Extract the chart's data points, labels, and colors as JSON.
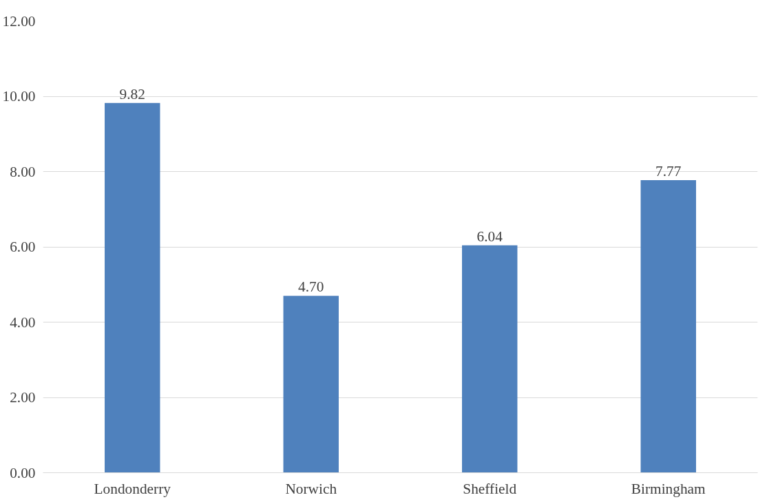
{
  "chart_data": {
    "type": "bar",
    "categories": [
      "Londonderry",
      "Norwich",
      "Sheffield",
      "Birmingham"
    ],
    "values": [
      9.82,
      4.7,
      6.04,
      7.77
    ],
    "value_labels": [
      "9.82",
      "4.70",
      "6.04",
      "7.77"
    ],
    "color": "#4f81bd",
    "ylim": [
      0,
      12
    ],
    "yticks": [
      {
        "value": 0,
        "label": "0.00"
      },
      {
        "value": 2,
        "label": "2.00"
      },
      {
        "value": 4,
        "label": "4.00"
      },
      {
        "value": 6,
        "label": "6.00"
      },
      {
        "value": 8,
        "label": "8.00"
      },
      {
        "value": 10,
        "label": "10.00"
      },
      {
        "value": 12,
        "label": "12.00"
      }
    ],
    "grid": "y"
  }
}
